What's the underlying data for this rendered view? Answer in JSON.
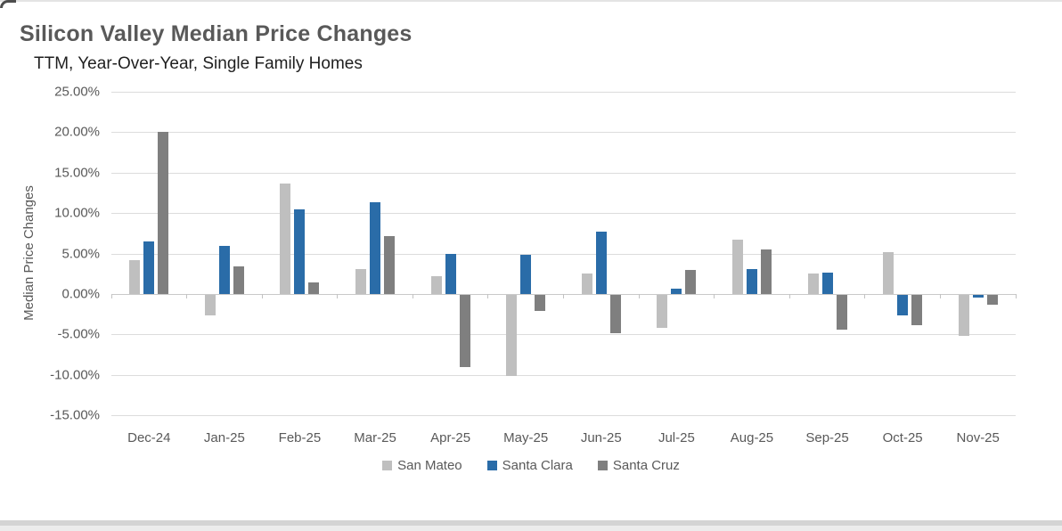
{
  "chart_data": {
    "type": "bar",
    "title": "Silicon Valley Median Price Changes",
    "subtitle": "TTM, Year-Over-Year, Single Family Homes",
    "ylabel": "Median Price Changes",
    "xlabel": "",
    "categories": [
      "Dec-24",
      "Jan-25",
      "Feb-25",
      "Mar-25",
      "Apr-25",
      "May-25",
      "Jun-25",
      "Jul-25",
      "Aug-25",
      "Sep-25",
      "Oct-25",
      "Nov-25"
    ],
    "series": [
      {
        "name": "San Mateo",
        "color": "#bfbfbf",
        "values": [
          4.2,
          -2.6,
          13.7,
          3.1,
          2.2,
          -10.0,
          2.5,
          -4.1,
          6.7,
          2.5,
          5.2,
          -5.1
        ]
      },
      {
        "name": "Santa Clara",
        "color": "#2a6ca8",
        "values": [
          6.5,
          5.9,
          10.4,
          11.3,
          5.0,
          4.8,
          7.7,
          0.7,
          3.1,
          2.6,
          -2.5,
          -0.3
        ]
      },
      {
        "name": "Santa Cruz",
        "color": "#7f7f7f",
        "values": [
          20.0,
          3.4,
          1.4,
          7.1,
          -8.9,
          -2.0,
          -4.7,
          3.0,
          5.5,
          -4.3,
          -3.8,
          -1.2
        ]
      }
    ],
    "ylim": [
      -15,
      25
    ],
    "ytick_step": 5,
    "ytick_format": "0.00%",
    "grid": true,
    "legend_position": "bottom"
  },
  "colors": {
    "title_text": "#595959",
    "subtitle_text": "#1f1f1f",
    "tick_text": "#595959",
    "gridline": "#dcdcdc",
    "axis_line": "#c9c9c9",
    "background": "#ffffff"
  }
}
